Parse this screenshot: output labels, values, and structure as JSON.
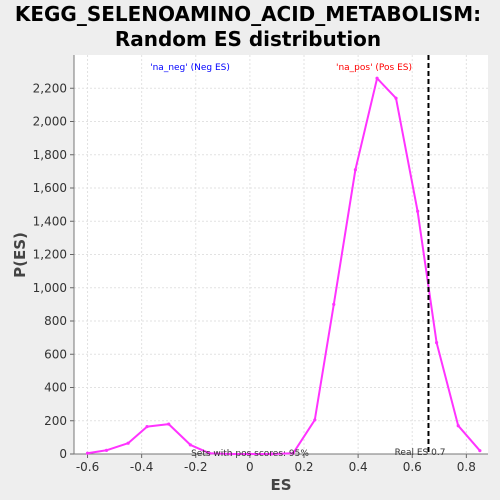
{
  "chart_data": {
    "type": "line",
    "title_line1": "KEGG_SELENOAMINO_ACID_METABOLISM:",
    "title_line2": "Random ES distribution",
    "xlabel": "ES",
    "ylabel": "P(ES)",
    "xlim": [
      -0.65,
      0.88
    ],
    "ylim": [
      0,
      2400
    ],
    "x_ticks": [
      -0.6,
      -0.4,
      -0.2,
      0.0,
      0.2,
      0.4,
      0.6,
      0.8
    ],
    "x_tick_labels": [
      "-0.6",
      "-0.4",
      "-0.2",
      "0",
      "0.2",
      "0.4",
      "0.6",
      "0.8"
    ],
    "y_ticks": [
      0,
      200,
      400,
      600,
      800,
      1000,
      1200,
      1400,
      1600,
      1800,
      2000,
      2200
    ],
    "y_tick_labels": [
      "0",
      "200",
      "400",
      "600",
      "800",
      "1,000",
      "1,200",
      "1,400",
      "1,600",
      "1,800",
      "2,000",
      "2,200"
    ],
    "grid": true,
    "series": [
      {
        "color": "#ff33ff",
        "x": [
          -0.6,
          -0.53,
          -0.45,
          -0.38,
          -0.3,
          -0.22,
          -0.15,
          -0.07,
          0.0,
          0.08,
          0.16,
          0.24,
          0.31,
          0.39,
          0.47,
          0.54,
          0.62,
          0.69,
          0.77,
          0.85
        ],
        "y": [
          5,
          22,
          65,
          165,
          180,
          55,
          5,
          0,
          0,
          0,
          5,
          205,
          900,
          1710,
          2260,
          2140,
          1460,
          670,
          170,
          20
        ]
      }
    ],
    "reference_line": {
      "x": 0.66,
      "color": "#000000",
      "style": "dashed"
    },
    "annotations": {
      "neg_label": "'na_neg' (Neg ES)",
      "neg_color": "#0000ff",
      "pos_label": "'na_pos' (Pos ES)",
      "pos_color": "#ff0000",
      "sets_label": "Sets with pos scores: 95%",
      "real_es_label": "Real ES 0.7"
    }
  }
}
